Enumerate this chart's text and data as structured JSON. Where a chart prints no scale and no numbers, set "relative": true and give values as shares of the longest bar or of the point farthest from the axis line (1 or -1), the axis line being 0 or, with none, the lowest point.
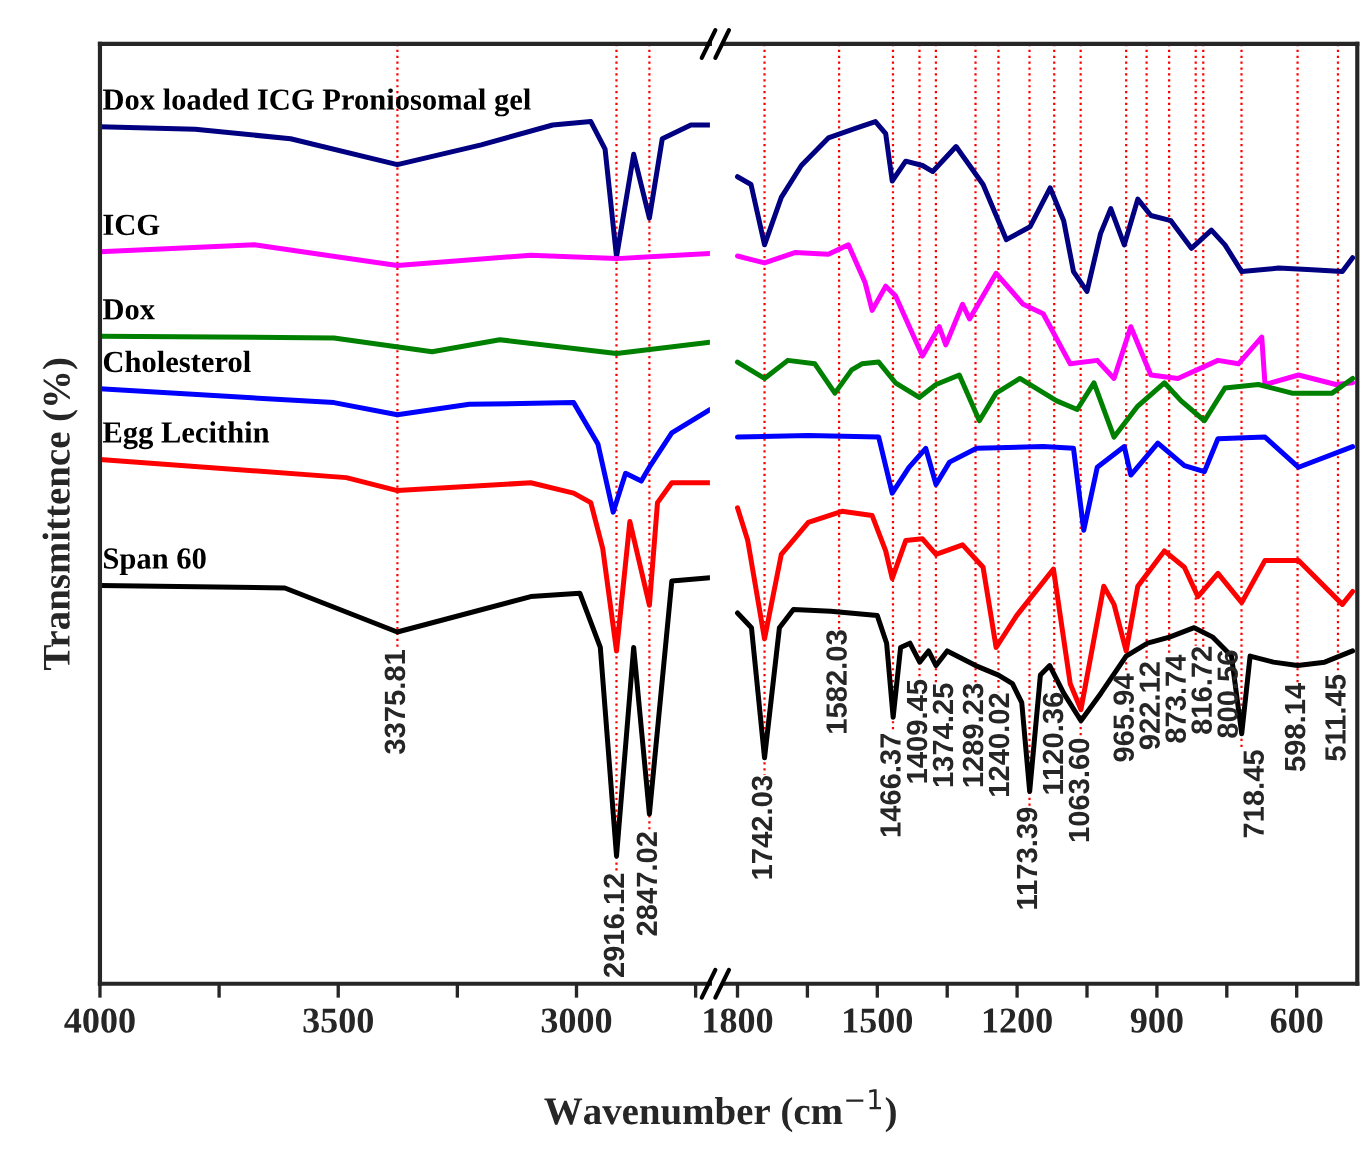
{
  "chart_data": [
    {
      "type": "line",
      "relative": true,
      "ylabel": "Transmittence (%)",
      "xlabel": "Wavenumber (cm$^{−1}$)",
      "xlim": [
        4000,
        2720
      ],
      "xticks": [
        4000,
        3500,
        3000,
        {
          "value": 3750,
          "label": null
        },
        {
          "value": 3250,
          "label": null
        },
        {
          "value": 2750,
          "label": null
        }
      ],
      "tick_labels": "x",
      "grid": false,
      "legend": false,
      "series": [
        {
          "name": "Dox loaded ICG Proniosomal gel",
          "color": "#000080",
          "x": [
            4000,
            3800,
            3600,
            3376,
            3200,
            3050,
            2970,
            2940,
            2916,
            2880,
            2847,
            2820,
            2760,
            2720
          ],
          "values": [
            0.994,
            0.991,
            0.98,
            0.95,
            0.973,
            0.996,
            1,
            0.968,
            0.843,
            0.962,
            0.888,
            0.98,
            0.996,
            0.996
          ]
        },
        {
          "name": "ICG",
          "color": "#ff00ff",
          "x": [
            4000,
            3676,
            3376,
            3096,
            2916,
            2720
          ],
          "values": [
            0.849,
            0.857,
            0.833,
            0.845,
            0.841,
            0.847
          ]
        },
        {
          "name": "Dox",
          "color": "#008000",
          "x": [
            4000,
            3509,
            3303,
            3161,
            2916,
            2720
          ],
          "values": [
            0.751,
            0.749,
            0.733,
            0.747,
            0.731,
            0.744
          ]
        },
        {
          "name": "Cholesterol",
          "color": "#0000ff",
          "x": [
            4000,
            3509,
            3376,
            3225,
            3006,
            2955,
            2923,
            2897,
            2864,
            2845,
            2800,
            2720
          ],
          "values": [
            0.69,
            0.674,
            0.66,
            0.672,
            0.674,
            0.626,
            0.547,
            0.592,
            0.583,
            0.601,
            0.639,
            0.666
          ]
        },
        {
          "name": "Egg Lecithin",
          "color": "#ff0000",
          "x": [
            4000,
            3483,
            3376,
            3096,
            3006,
            2970,
            2945,
            2916,
            2888,
            2847,
            2830,
            2800,
            2720
          ],
          "values": [
            0.608,
            0.587,
            0.572,
            0.581,
            0.569,
            0.558,
            0.505,
            0.386,
            0.536,
            0.439,
            0.558,
            0.581,
            0.581
          ]
        },
        {
          "name": "Span 60",
          "color": "#000000",
          "x": [
            4000,
            3612,
            3376,
            3096,
            2993,
            2950,
            2916,
            2880,
            2847,
            2800,
            2720
          ],
          "values": [
            0.462,
            0.459,
            0.408,
            0.449,
            0.453,
            0.39,
            0.148,
            0.39,
            0.197,
            0.467,
            0.471
          ]
        }
      ],
      "ref_lines": [
        {
          "axis": "x",
          "value": 3375.81,
          "label": "3375.81",
          "color": "#ff0000",
          "line_style": "dotted"
        },
        {
          "axis": "x",
          "value": 2916.12,
          "label": "2916.12",
          "color": "#ff0000",
          "line_style": "dotted"
        },
        {
          "axis": "x",
          "value": 2847.02,
          "label": "2847.02",
          "color": "#ff0000",
          "line_style": "dotted"
        }
      ]
    },
    {
      "type": "line",
      "relative": true,
      "xlim": [
        1830,
        470
      ],
      "xticks": [
        1800,
        1500,
        1200,
        900,
        600,
        {
          "value": 1650,
          "label": null
        },
        {
          "value": 1350,
          "label": null
        },
        {
          "value": 1050,
          "label": null
        },
        {
          "value": 750,
          "label": null
        }
      ],
      "tick_labels": "x",
      "grid": false,
      "legend": false,
      "series": [
        {
          "color": "#000080",
          "x": [
            1800,
            1771,
            1742,
            1706,
            1663,
            1605,
            1547,
            1504,
            1482,
            1468,
            1439,
            1403,
            1381,
            1331,
            1273,
            1223,
            1172,
            1129,
            1100,
            1079,
            1050,
            1021,
            999,
            970,
            941,
            913,
            870,
            826,
            783,
            754,
            718,
            639,
            567,
            502,
            480
          ],
          "values": [
            0.936,
            0.927,
            0.857,
            0.912,
            0.949,
            0.981,
            0.992,
            1,
            0.986,
            0.931,
            0.954,
            0.949,
            0.942,
            0.971,
            0.927,
            0.863,
            0.878,
            0.923,
            0.885,
            0.826,
            0.803,
            0.87,
            0.899,
            0.857,
            0.91,
            0.891,
            0.885,
            0.853,
            0.874,
            0.857,
            0.826,
            0.83,
            0.828,
            0.826,
            0.842
          ]
        },
        {
          "color": "#ff00ff",
          "x": [
            1800,
            1742,
            1677,
            1605,
            1562,
            1526,
            1511,
            1482,
            1461,
            1403,
            1367,
            1353,
            1317,
            1302,
            1245,
            1187,
            1144,
            1086,
            1028,
            992,
            956,
            913,
            855,
            769,
            725,
            675,
            668,
            596,
            516,
            480
          ],
          "values": [
            0.844,
            0.836,
            0.848,
            0.846,
            0.857,
            0.813,
            0.781,
            0.809,
            0.798,
            0.728,
            0.762,
            0.741,
            0.788,
            0.771,
            0.824,
            0.788,
            0.777,
            0.719,
            0.723,
            0.702,
            0.762,
            0.706,
            0.702,
            0.723,
            0.719,
            0.75,
            0.695,
            0.706,
            0.695,
            0.697
          ]
        },
        {
          "color": "#008000",
          "x": [
            1800,
            1742,
            1692,
            1634,
            1591,
            1555,
            1533,
            1497,
            1461,
            1410,
            1374,
            1324,
            1281,
            1245,
            1194,
            1115,
            1071,
            1035,
            992,
            941,
            884,
            848,
            798,
            754,
            682,
            610,
            524,
            480
          ],
          "values": [
            0.721,
            0.702,
            0.723,
            0.719,
            0.685,
            0.712,
            0.719,
            0.721,
            0.697,
            0.68,
            0.695,
            0.706,
            0.653,
            0.685,
            0.702,
            0.676,
            0.666,
            0.697,
            0.634,
            0.67,
            0.697,
            0.676,
            0.653,
            0.691,
            0.695,
            0.685,
            0.685,
            0.702
          ]
        },
        {
          "color": "#0000ff",
          "x": [
            1800,
            1648,
            1497,
            1468,
            1432,
            1396,
            1374,
            1345,
            1287,
            1144,
            1079,
            1057,
            1028,
            970,
            956,
            898,
            841,
            798,
            769,
            668,
            596,
            480
          ],
          "values": [
            0.634,
            0.636,
            0.634,
            0.569,
            0.599,
            0.621,
            0.579,
            0.605,
            0.621,
            0.623,
            0.621,
            0.526,
            0.599,
            0.623,
            0.59,
            0.627,
            0.601,
            0.594,
            0.632,
            0.634,
            0.599,
            0.623
          ]
        },
        {
          "color": "#ff0000",
          "x": [
            1800,
            1778,
            1742,
            1706,
            1648,
            1576,
            1511,
            1482,
            1468,
            1439,
            1403,
            1374,
            1317,
            1273,
            1245,
            1201,
            1122,
            1086,
            1063,
            1014,
            992,
            966,
            941,
            884,
            841,
            812,
            769,
            718,
            668,
            596,
            502,
            480
          ],
          "values": [
            0.552,
            0.514,
            0.4,
            0.498,
            0.535,
            0.548,
            0.543,
            0.502,
            0.47,
            0.514,
            0.516,
            0.498,
            0.509,
            0.483,
            0.39,
            0.427,
            0.481,
            0.348,
            0.318,
            0.461,
            0.44,
            0.386,
            0.461,
            0.502,
            0.483,
            0.449,
            0.476,
            0.442,
            0.491,
            0.491,
            0.44,
            0.455
          ]
        },
        {
          "color": "#000000",
          "x": [
            1800,
            1770,
            1742,
            1710,
            1680,
            1600,
            1500,
            1480,
            1466,
            1450,
            1430,
            1409,
            1390,
            1374,
            1350,
            1289,
            1240,
            1210,
            1190,
            1173,
            1150,
            1130,
            1100,
            1063,
            1020,
            966,
            920,
            873,
            820,
            780,
            740,
            718,
            700,
            650,
            598,
            540,
            480
          ],
          "values": [
            0.43,
            0.413,
            0.262,
            0.413,
            0.434,
            0.432,
            0.427,
            0.395,
            0.309,
            0.39,
            0.395,
            0.373,
            0.386,
            0.369,
            0.386,
            0.369,
            0.358,
            0.348,
            0.326,
            0.223,
            0.358,
            0.369,
            0.337,
            0.305,
            0.337,
            0.38,
            0.395,
            0.402,
            0.413,
            0.402,
            0.38,
            0.29,
            0.38,
            0.373,
            0.369,
            0.373,
            0.386
          ]
        }
      ],
      "ref_lines": [
        {
          "axis": "x",
          "value": 1742.03,
          "label": "1742.03",
          "color": "#ff0000",
          "line_style": "dotted"
        },
        {
          "axis": "x",
          "value": 1582.03,
          "label": "1582.03",
          "color": "#ff0000",
          "line_style": "dotted"
        },
        {
          "axis": "x",
          "value": 1466.37,
          "label": "1466.37",
          "color": "#ff0000",
          "line_style": "dotted"
        },
        {
          "axis": "x",
          "value": 1409.45,
          "label": "1409.45",
          "color": "#ff0000",
          "line_style": "dotted"
        },
        {
          "axis": "x",
          "value": 1374.25,
          "label": "1374.25",
          "color": "#ff0000",
          "line_style": "dotted"
        },
        {
          "axis": "x",
          "value": 1289.23,
          "label": "1289.23",
          "color": "#ff0000",
          "line_style": "dotted"
        },
        {
          "axis": "x",
          "value": 1240.02,
          "label": "1240.02",
          "color": "#ff0000",
          "line_style": "dotted"
        },
        {
          "axis": "x",
          "value": 1173.39,
          "label": "1173.39",
          "color": "#ff0000",
          "line_style": "dotted"
        },
        {
          "axis": "x",
          "value": 1120.36,
          "label": "1120.36",
          "color": "#ff0000",
          "line_style": "dotted"
        },
        {
          "axis": "x",
          "value": 1063.6,
          "label": "1063.60",
          "color": "#ff0000",
          "line_style": "dotted"
        },
        {
          "axis": "x",
          "value": 965.94,
          "label": "965.94",
          "color": "#ff0000",
          "line_style": "dotted"
        },
        {
          "axis": "x",
          "value": 922.12,
          "label": "922.12",
          "color": "#ff0000",
          "line_style": "dotted"
        },
        {
          "axis": "x",
          "value": 873.74,
          "label": "873.74",
          "color": "#ff0000",
          "line_style": "dotted"
        },
        {
          "axis": "x",
          "value": 816.72,
          "label": "816.72",
          "color": "#ff0000",
          "line_style": "dotted"
        },
        {
          "axis": "x",
          "value": 800.56,
          "label": "800.56",
          "color": "#ff0000",
          "line_style": "dotted"
        },
        {
          "axis": "x",
          "value": 718.45,
          "label": "718.45",
          "color": "#ff0000",
          "line_style": "dotted"
        },
        {
          "axis": "x",
          "value": 598.14,
          "label": "598.14",
          "color": "#ff0000",
          "line_style": "dotted"
        },
        {
          "axis": "x",
          "value": 511.45,
          "label": "511.45",
          "color": "#ff0000",
          "line_style": "dotted"
        }
      ]
    }
  ]
}
